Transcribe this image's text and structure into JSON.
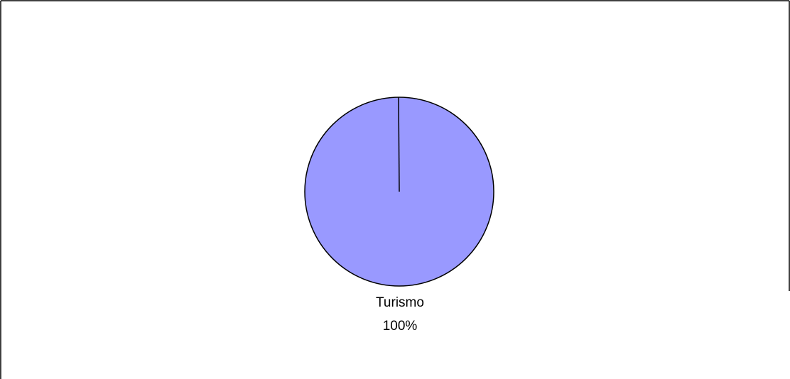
{
  "chart_data": {
    "type": "pie",
    "slices": [
      {
        "label": "Turismo",
        "value": 100,
        "value_label": "100%",
        "color": "#9999ff"
      }
    ],
    "outline_color": "#000000",
    "background_color": "#ffffff"
  }
}
